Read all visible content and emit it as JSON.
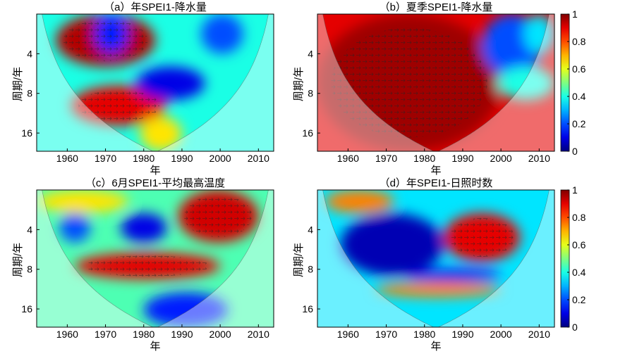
{
  "chart_data": [
    {
      "type": "heatmap",
      "title": "（a）年SPEI1-降水量",
      "xlabel": "年",
      "ylabel": "周期/年",
      "xlim": [
        1952,
        2014
      ],
      "ylim_period": [
        2,
        22
      ],
      "xticks": [
        "1960",
        "1970",
        "1980",
        "1990",
        "2000",
        "2010"
      ],
      "yticks": [
        "4",
        "8",
        "16"
      ],
      "background": 0.4,
      "regions": [
        {
          "years": [
            1957,
            1983
          ],
          "period": [
            2,
            5
          ],
          "value": 0.95
        },
        {
          "years": [
            1961,
            1986
          ],
          "period": [
            7,
            14
          ],
          "value": 0.9
        },
        {
          "years": [
            1978,
            1996
          ],
          "period": [
            5,
            9
          ],
          "value": 0.1
        },
        {
          "years": [
            1967,
            1976
          ],
          "period": [
            2,
            4
          ],
          "value": 0.15
        },
        {
          "years": [
            1995,
            2006
          ],
          "period": [
            2,
            4
          ],
          "value": 0.2
        },
        {
          "years": [
            1979,
            1990
          ],
          "period": [
            12,
            22
          ],
          "value": 0.65
        }
      ]
    },
    {
      "type": "heatmap",
      "title": "（b）夏季SPEI1-降水量",
      "xlabel": "年",
      "ylabel": "周期/年",
      "xlim": [
        1952,
        2014
      ],
      "ylim_period": [
        2,
        22
      ],
      "xticks": [
        "1960",
        "1970",
        "1980",
        "1990",
        "2000",
        "2010"
      ],
      "yticks": [
        "4",
        "8",
        "16"
      ],
      "background": 0.9,
      "regions": [
        {
          "years": [
            1952,
            2000
          ],
          "period": [
            2,
            22
          ],
          "value": 0.97
        },
        {
          "years": [
            1995,
            2011
          ],
          "period": [
            2,
            6
          ],
          "value": 0.2
        },
        {
          "years": [
            1999,
            2014
          ],
          "period": [
            5,
            9
          ],
          "value": 0.4
        },
        {
          "years": [
            2006,
            2014
          ],
          "period": [
            2,
            4
          ],
          "value": 0.35
        }
      ]
    },
    {
      "type": "heatmap",
      "title": "（c）6月SPEI1-平均最高温度",
      "xlabel": "年",
      "ylabel": "周期/年",
      "xlim": [
        1952,
        2014
      ],
      "ylim_period": [
        2,
        22
      ],
      "xticks": [
        "1960",
        "1970",
        "1980",
        "1990",
        "2000",
        "2010"
      ],
      "yticks": [
        "4",
        "8",
        "16"
      ],
      "background": 0.45,
      "regions": [
        {
          "years": [
            1952,
            1976
          ],
          "period": [
            2,
            3
          ],
          "value": 0.65
        },
        {
          "years": [
            1989,
            2010
          ],
          "period": [
            2,
            5
          ],
          "value": 0.92
        },
        {
          "years": [
            1962,
            2000
          ],
          "period": [
            6,
            9.5
          ],
          "value": 0.9
        },
        {
          "years": [
            1974,
            1986
          ],
          "period": [
            3,
            5
          ],
          "value": 0.1
        },
        {
          "years": [
            1980,
            2002
          ],
          "period": [
            12,
            22
          ],
          "value": 0.15
        },
        {
          "years": [
            1958,
            1966
          ],
          "period": [
            3,
            5
          ],
          "value": 0.2
        }
      ]
    },
    {
      "type": "heatmap",
      "title": "（d）年SPEI1-日照时数",
      "xlabel": "年",
      "ylabel": "周期/年",
      "xlim": [
        1952,
        2014
      ],
      "ylim_period": [
        2,
        22
      ],
      "xticks": [
        "1960",
        "1970",
        "1980",
        "1990",
        "2000",
        "2010"
      ],
      "yticks": [
        "4",
        "8",
        "16"
      ],
      "background": 0.35,
      "regions": [
        {
          "years": [
            1958,
            1985
          ],
          "period": [
            3,
            9
          ],
          "value": 0.05
        },
        {
          "years": [
            1985,
            2005
          ],
          "period": [
            3,
            7
          ],
          "value": 0.9
        },
        {
          "years": [
            1954,
            1972
          ],
          "period": [
            2,
            3
          ],
          "value": 0.75
        },
        {
          "years": [
            1967,
            2000
          ],
          "period": [
            10,
            13
          ],
          "value": 0.75
        },
        {
          "years": [
            1975,
            2000
          ],
          "period": [
            8,
            10
          ],
          "value": 0.1
        }
      ]
    }
  ],
  "colorbar": {
    "ticks": [
      "0",
      "0.2",
      "0.4",
      "0.6",
      "0.8",
      "1"
    ],
    "range": [
      0,
      1
    ]
  }
}
